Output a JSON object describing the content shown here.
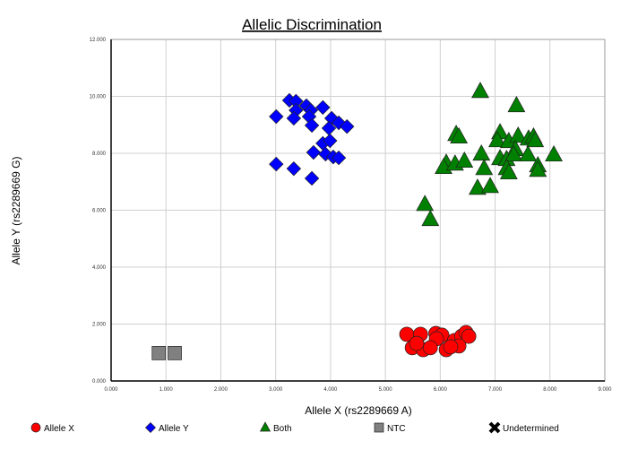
{
  "chart_data": {
    "type": "scatter",
    "title": "Allelic Discrimination",
    "xlabel": "Allele X (rs2289669 A)",
    "ylabel": "Allele Y (rs2289669 G)",
    "xlim": [
      0,
      9
    ],
    "ylim": [
      0,
      12
    ],
    "xticks": [
      "0.000",
      "1.000",
      "2.000",
      "3.000",
      "4.000",
      "5.000",
      "6.000",
      "7.000",
      "8.000",
      "9.000"
    ],
    "yticks": [
      "0.000",
      "2.000",
      "4.000",
      "6.000",
      "8.000",
      "10.000",
      "12.000"
    ],
    "grid": true,
    "legend_position": "bottom",
    "series": [
      {
        "name": "Allele X",
        "marker": "circle",
        "color": "#ff0000",
        "points": [
          [
            5.39,
            1.64
          ],
          [
            5.64,
            1.64
          ],
          [
            5.92,
            1.67
          ],
          [
            6.03,
            1.61
          ],
          [
            5.93,
            1.48
          ],
          [
            5.49,
            1.17
          ],
          [
            5.69,
            1.1
          ],
          [
            5.82,
            1.17
          ],
          [
            6.11,
            1.1
          ],
          [
            6.26,
            1.42
          ],
          [
            6.39,
            1.57
          ],
          [
            6.47,
            1.7
          ],
          [
            6.52,
            1.57
          ],
          [
            6.34,
            1.23
          ],
          [
            6.19,
            1.2
          ],
          [
            5.57,
            1.32
          ]
        ]
      },
      {
        "name": "Allele Y",
        "marker": "diamond",
        "color": "#0000ff",
        "points": [
          [
            3.25,
            9.86
          ],
          [
            3.37,
            9.83
          ],
          [
            3.56,
            9.67
          ],
          [
            3.86,
            9.61
          ],
          [
            3.37,
            9.51
          ],
          [
            3.64,
            9.51
          ],
          [
            3.01,
            9.29
          ],
          [
            3.33,
            9.23
          ],
          [
            3.61,
            9.29
          ],
          [
            3.66,
            8.98
          ],
          [
            4.02,
            9.23
          ],
          [
            4.15,
            9.07
          ],
          [
            4.3,
            8.94
          ],
          [
            3.97,
            8.88
          ],
          [
            3.86,
            8.35
          ],
          [
            3.99,
            8.44
          ],
          [
            3.69,
            8.03
          ],
          [
            3.91,
            7.97
          ],
          [
            4.05,
            7.87
          ],
          [
            4.15,
            7.84
          ],
          [
            3.01,
            7.62
          ],
          [
            3.33,
            7.46
          ],
          [
            3.66,
            7.12
          ]
        ]
      },
      {
        "name": "Both",
        "marker": "triangle",
        "color": "#008000",
        "points": [
          [
            6.73,
            10.17
          ],
          [
            7.39,
            9.67
          ],
          [
            6.29,
            8.66
          ],
          [
            6.34,
            8.57
          ],
          [
            7.09,
            8.72
          ],
          [
            7.04,
            8.44
          ],
          [
            7.25,
            8.41
          ],
          [
            7.42,
            8.6
          ],
          [
            7.61,
            8.5
          ],
          [
            7.7,
            8.57
          ],
          [
            7.73,
            8.44
          ],
          [
            7.37,
            8.13
          ],
          [
            6.75,
            7.97
          ],
          [
            7.09,
            7.81
          ],
          [
            7.21,
            7.78
          ],
          [
            7.34,
            7.94
          ],
          [
            7.6,
            7.94
          ],
          [
            8.07,
            7.94
          ],
          [
            6.11,
            7.65
          ],
          [
            6.06,
            7.5
          ],
          [
            6.27,
            7.62
          ],
          [
            6.44,
            7.72
          ],
          [
            6.8,
            7.46
          ],
          [
            7.21,
            7.46
          ],
          [
            7.25,
            7.31
          ],
          [
            7.78,
            7.56
          ],
          [
            7.78,
            7.4
          ],
          [
            6.68,
            6.77
          ],
          [
            6.91,
            6.83
          ],
          [
            5.72,
            6.2
          ],
          [
            5.82,
            5.67
          ]
        ]
      },
      {
        "name": "NTC",
        "marker": "square",
        "color": "#808080",
        "points": [
          [
            0.87,
            0.98
          ],
          [
            1.16,
            0.98
          ]
        ]
      },
      {
        "name": "Undetermined",
        "marker": "x",
        "color": "#000000",
        "points": []
      }
    ]
  }
}
